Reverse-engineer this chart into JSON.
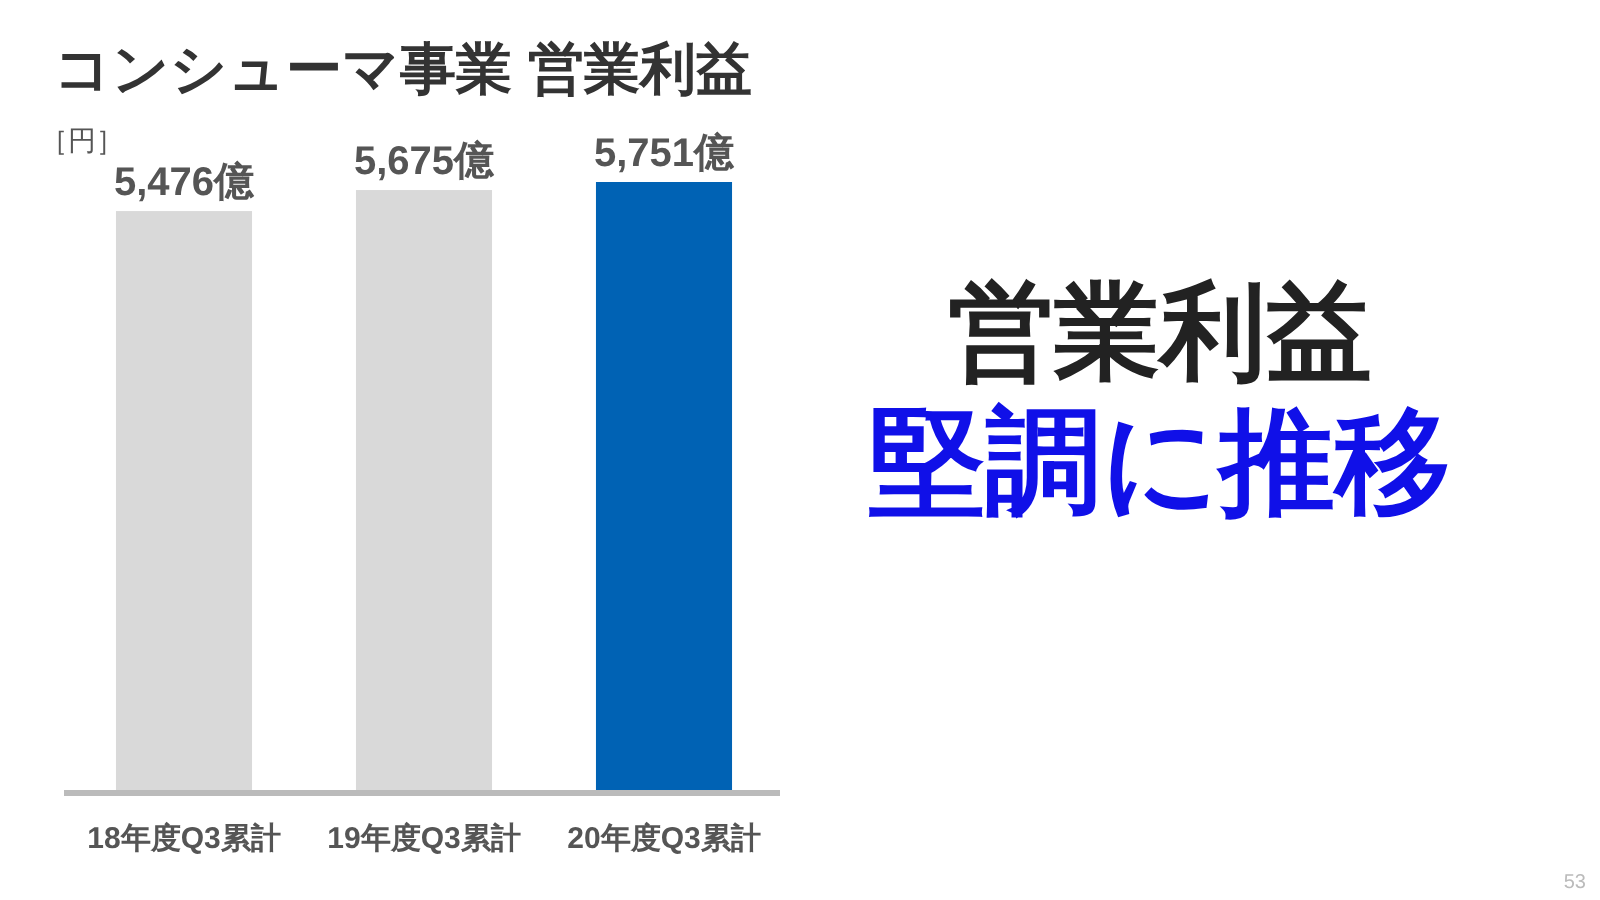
{
  "chart_data": {
    "type": "bar",
    "title": "コンシューマ事業 営業利益",
    "ylabel": "［円］",
    "categories": [
      "18年度Q3累計",
      "19年度Q3累計",
      "20年度Q3累計"
    ],
    "values": [
      5476,
      5675,
      5751
    ],
    "value_labels": [
      "5,476億",
      "5,675億",
      "5,751億"
    ],
    "colors": [
      "#d9d9d9",
      "#d9d9d9",
      "#0062b4"
    ],
    "annotations": [
      "営業利益",
      "堅調に推移",
      "53"
    ]
  }
}
